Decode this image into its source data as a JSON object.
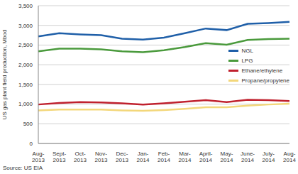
{
  "chart_data": {
    "type": "line",
    "y_label": "US gas plant field production, Mbod",
    "source": "Source: US EIA",
    "categories": [
      "Aug-2013",
      "Sept-2013",
      "Oct-2013",
      "Nov-2013",
      "Dec-2013",
      "Jan-2014",
      "Feb-2014",
      "Mar-2014",
      "April-2014",
      "May-2014",
      "June-2014",
      "July-2014",
      "Aug-2014"
    ],
    "series": [
      {
        "name": "NGL",
        "color": "#1f5fa8",
        "values": [
          2720,
          2800,
          2770,
          2750,
          2660,
          2640,
          2690,
          2800,
          2920,
          2880,
          3040,
          3060,
          3090
        ]
      },
      {
        "name": "LPG",
        "color": "#4a9a3c",
        "values": [
          2340,
          2410,
          2410,
          2390,
          2340,
          2320,
          2370,
          2450,
          2550,
          2510,
          2630,
          2650,
          2660
        ]
      },
      {
        "name": "Ethane/ethylene",
        "color": "#c0212e",
        "values": [
          990,
          1030,
          1050,
          1040,
          1020,
          990,
          1020,
          1060,
          1100,
          1050,
          1110,
          1100,
          1080
        ]
      },
      {
        "name": "Propane/propylene",
        "color": "#f3d77a",
        "values": [
          840,
          860,
          860,
          860,
          840,
          830,
          850,
          880,
          920,
          920,
          960,
          990,
          1010
        ]
      }
    ],
    "ylim": [
      0,
      3500
    ],
    "yticks": [
      0,
      500,
      {
        "value": 1000,
        "label": "1,000"
      },
      {
        "value": 1500,
        "label": "1,500"
      },
      {
        "value": 2000,
        "label": "2,000"
      },
      {
        "value": 2500,
        "label": "2,500"
      },
      {
        "value": 3000,
        "label": "3,000"
      },
      {
        "value": 3500,
        "label": "3,500"
      }
    ],
    "grid": true,
    "legend": "right"
  }
}
